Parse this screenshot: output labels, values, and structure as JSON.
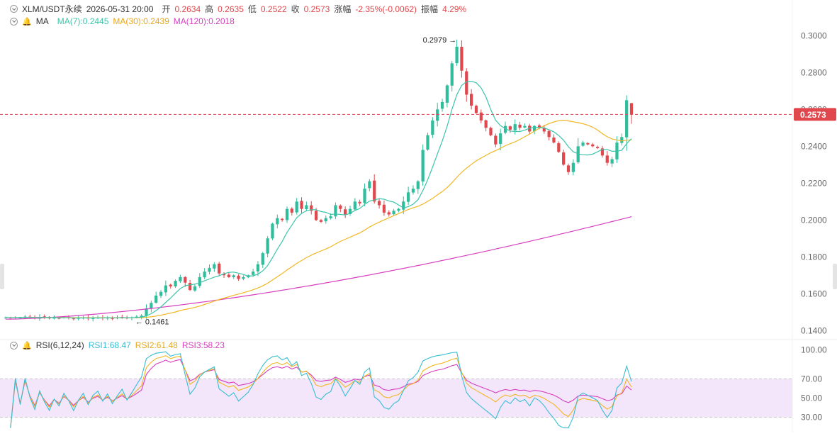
{
  "header": {
    "symbol": "XLM/USDT永续",
    "datetime": "2026-05-31 20:00",
    "open_label": "开",
    "open": "0.2634",
    "high_label": "高",
    "high": "0.2635",
    "low_label": "低",
    "low": "0.2522",
    "close_label": "收",
    "close": "0.2573",
    "change_label": "涨幅",
    "change": "-2.35%(-0.0062)",
    "amplitude_label": "振幅",
    "amplitude": "4.29%"
  },
  "ma_legend": {
    "name": "MA",
    "ma7": "MA(7):0.2445",
    "ma30": "MA(30):0.2439",
    "ma120": "MA(120):0.2018"
  },
  "rsi_legend": {
    "name": "RSI(6,12,24)",
    "rsi1": "RSI1:68.47",
    "rsi2": "RSI2:61.48",
    "rsi3": "RSI3:58.23"
  },
  "colors": {
    "up": "#2fbd9c",
    "down": "#e0484d",
    "ma7": "#3cc4aa",
    "ma30": "#f2b623",
    "ma120": "#d63fbf",
    "rsi1": "#37bdd3",
    "rsi2": "#f2b623",
    "rsi3": "#d63fbf",
    "rsi_band": "#f3e6fb",
    "axis_text": "#666666",
    "price_tag": "#e0484d"
  },
  "icons": [
    "collapse-icon",
    "bell-icon"
  ],
  "chart_data": [
    {
      "type": "candlestick",
      "title": "XLM/USDT永续",
      "y_ticks": [
        0.3,
        0.28,
        0.26,
        0.24,
        0.22,
        0.2,
        0.18,
        0.16,
        0.14
      ],
      "y_tick_labels": [
        "0.3000",
        "0.2800",
        "0.2600",
        "0.2400",
        "0.2200",
        "0.2000",
        "0.1800",
        "0.1600",
        "0.1400"
      ],
      "ylim": [
        0.1355,
        0.3055
      ],
      "last_price": 0.2573,
      "last_price_label": "0.2573",
      "max_annotation": {
        "value": 0.2979,
        "label": "0.2979 →"
      },
      "min_annotation": {
        "value": 0.1461,
        "label": "← 0.1461"
      },
      "grid": false,
      "approximate_close_path": [
        0.1471,
        0.1469,
        0.1473,
        0.147,
        0.1476,
        0.1472,
        0.1468,
        0.1474,
        0.147,
        0.1466,
        0.147,
        0.1467,
        0.1472,
        0.1469,
        0.1464,
        0.1468,
        0.1471,
        0.1466,
        0.147,
        0.1472,
        0.1468,
        0.1471,
        0.1467,
        0.147,
        0.1473,
        0.1469,
        0.1472,
        0.1476,
        0.1481,
        0.152,
        0.155,
        0.159,
        0.161,
        0.1645,
        0.164,
        0.167,
        0.169,
        0.166,
        0.162,
        0.164,
        0.169,
        0.172,
        0.174,
        0.176,
        0.171,
        0.17,
        0.169,
        0.17,
        0.168,
        0.169,
        0.17,
        0.172,
        0.176,
        0.182,
        0.19,
        0.198,
        0.201,
        0.2,
        0.206,
        0.204,
        0.21,
        0.206,
        0.208,
        0.205,
        0.2,
        0.199,
        0.201,
        0.202,
        0.208,
        0.206,
        0.203,
        0.206,
        0.21,
        0.209,
        0.217,
        0.221,
        0.21,
        0.208,
        0.204,
        0.203,
        0.205,
        0.206,
        0.21,
        0.215,
        0.217,
        0.221,
        0.238,
        0.246,
        0.254,
        0.26,
        0.264,
        0.273,
        0.285,
        0.294,
        0.281,
        0.268,
        0.262,
        0.258,
        0.254,
        0.25,
        0.246,
        0.241,
        0.247,
        0.251,
        0.249,
        0.252,
        0.25,
        0.251,
        0.248,
        0.251,
        0.25,
        0.248,
        0.245,
        0.242,
        0.237,
        0.23,
        0.226,
        0.231,
        0.24,
        0.242,
        0.241,
        0.24,
        0.239,
        0.235,
        0.231,
        0.233,
        0.242,
        0.245,
        0.265,
        0.2573
      ],
      "series": [
        {
          "name": "MA(7)",
          "last": 0.2445
        },
        {
          "name": "MA(30)",
          "last": 0.2439
        },
        {
          "name": "MA(120)",
          "last": 0.2018
        }
      ]
    },
    {
      "type": "line",
      "title": "RSI(6,12,24)",
      "y_ticks": [
        100,
        70,
        50,
        30
      ],
      "y_tick_labels": [
        "100.00",
        "70.00",
        "50.00",
        "30.00"
      ],
      "ylim": [
        18,
        104
      ],
      "band": [
        30,
        70
      ],
      "series": [
        {
          "name": "RSI1",
          "last": 68.47
        },
        {
          "name": "RSI2",
          "last": 61.48
        },
        {
          "name": "RSI3",
          "last": 58.23
        }
      ]
    }
  ]
}
